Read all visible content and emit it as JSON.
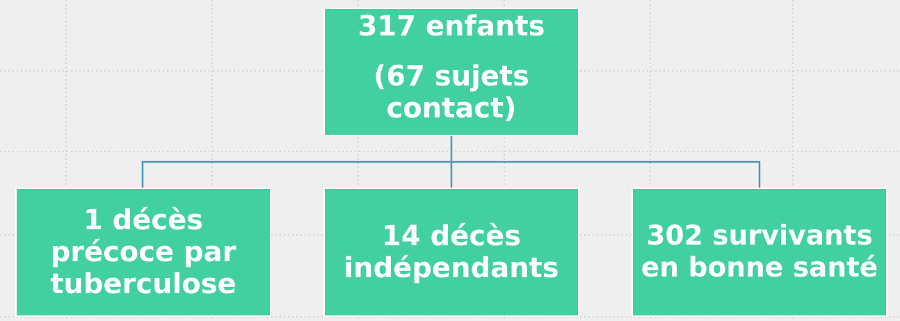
{
  "nodes": [
    {
      "label": "317 enfants",
      "sublabel": "(67 sujets contact)"
    },
    {
      "label": "1 décès précoce par tuberculose"
    },
    {
      "label": "14 décès indépendants"
    },
    {
      "label": "302 survivants en bonne santé"
    }
  ]
}
